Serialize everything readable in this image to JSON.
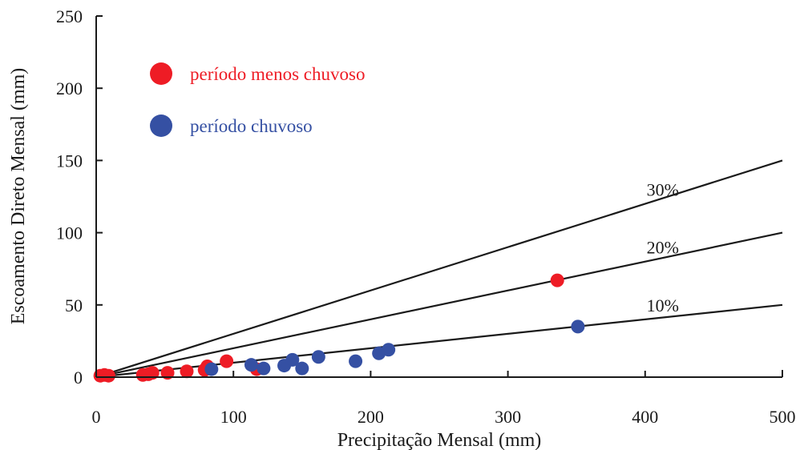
{
  "chart_data": {
    "type": "scatter",
    "xlabel": "Precipitação Mensal (mm)",
    "ylabel": "Escoamento Direto Mensal (mm)",
    "xlim": [
      0,
      500
    ],
    "ylim": [
      0,
      250
    ],
    "x_ticks": [
      0,
      100,
      200,
      300,
      400,
      500
    ],
    "y_ticks": [
      0,
      50,
      100,
      150,
      200,
      250
    ],
    "x_tick_labels": [
      "0",
      "100",
      "200",
      "300",
      "400",
      "500"
    ],
    "y_tick_labels": [
      "0",
      "50",
      "100",
      "150",
      "200",
      "250"
    ],
    "grid": false,
    "legend_position": "top-left",
    "reference_lines": [
      {
        "label": "30%",
        "slope": 0.3,
        "label_at_x": 400
      },
      {
        "label": "20%",
        "slope": 0.2,
        "label_at_x": 400
      },
      {
        "label": "10%",
        "slope": 0.1,
        "label_at_x": 400
      }
    ],
    "series": [
      {
        "name": "período menos chuvoso",
        "color": "#ee1c25",
        "points": [
          {
            "x": 3,
            "y": 1
          },
          {
            "x": 6,
            "y": 1.5
          },
          {
            "x": 9,
            "y": 1
          },
          {
            "x": 34,
            "y": 1.5
          },
          {
            "x": 38,
            "y": 2
          },
          {
            "x": 41,
            "y": 3
          },
          {
            "x": 52,
            "y": 3
          },
          {
            "x": 66,
            "y": 4
          },
          {
            "x": 79,
            "y": 5
          },
          {
            "x": 81,
            "y": 7.5
          },
          {
            "x": 95,
            "y": 11
          },
          {
            "x": 117,
            "y": 5.5
          },
          {
            "x": 336,
            "y": 67
          }
        ]
      },
      {
        "name": "período chuvoso",
        "color": "#3550a3",
        "points": [
          {
            "x": 84,
            "y": 5.5
          },
          {
            "x": 113,
            "y": 8.5
          },
          {
            "x": 122,
            "y": 6
          },
          {
            "x": 137,
            "y": 8
          },
          {
            "x": 143,
            "y": 12
          },
          {
            "x": 150,
            "y": 6
          },
          {
            "x": 162,
            "y": 14
          },
          {
            "x": 189,
            "y": 11
          },
          {
            "x": 206,
            "y": 16.5
          },
          {
            "x": 213,
            "y": 19
          },
          {
            "x": 351,
            "y": 35
          }
        ]
      }
    ]
  }
}
